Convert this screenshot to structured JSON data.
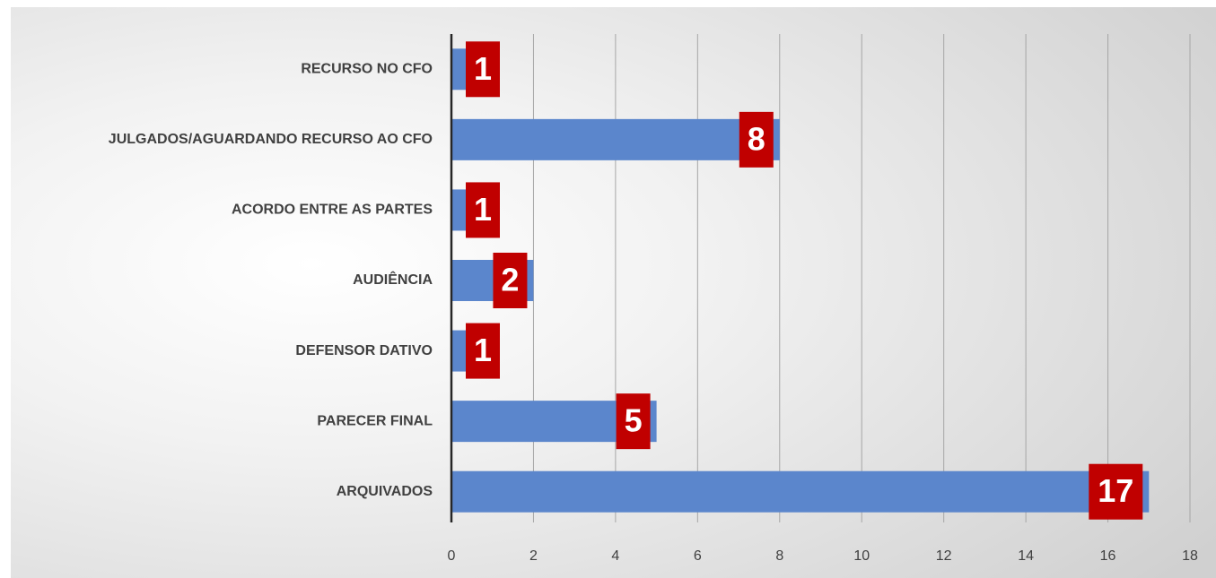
{
  "chart_data": {
    "type": "bar",
    "orientation": "horizontal",
    "categories": [
      "RECURSO NO CFO",
      "JULGADOS/AGUARDANDO RECURSO AO CFO",
      "ACORDO ENTRE AS PARTES",
      "AUDIÊNCIA",
      "DEFENSOR DATIVO",
      "PARECER FINAL",
      "ARQUIVADOS"
    ],
    "values": [
      1,
      8,
      1,
      2,
      1,
      5,
      17
    ],
    "color": "#5b86cc",
    "label_color": "#c00000",
    "xlim": [
      0,
      18
    ],
    "xticks": [
      0,
      2,
      4,
      6,
      8,
      10,
      12,
      14,
      16,
      18
    ],
    "grid": true
  }
}
